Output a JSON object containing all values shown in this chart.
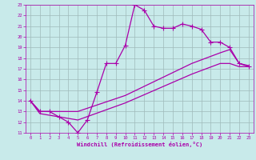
{
  "xlabel": "Windchill (Refroidissement éolien,°C)",
  "xlim": [
    -0.5,
    23.5
  ],
  "ylim": [
    11,
    23
  ],
  "yticks": [
    11,
    12,
    13,
    14,
    15,
    16,
    17,
    18,
    19,
    20,
    21,
    22,
    23
  ],
  "xticks": [
    0,
    1,
    2,
    3,
    4,
    5,
    6,
    7,
    8,
    9,
    10,
    11,
    12,
    13,
    14,
    15,
    16,
    17,
    18,
    19,
    20,
    21,
    22,
    23
  ],
  "bg_color": "#c8eaea",
  "grid_color": "#9fbaba",
  "line_color": "#aa00aa",
  "line1_x": [
    0,
    1,
    2,
    3,
    4,
    5,
    6,
    7,
    8,
    9,
    10,
    11,
    12,
    13,
    14,
    15,
    16,
    17,
    18,
    19,
    20,
    21,
    22,
    23
  ],
  "line1_y": [
    14.0,
    13.0,
    13.0,
    12.5,
    12.0,
    11.0,
    12.2,
    14.8,
    17.5,
    17.5,
    19.2,
    23.0,
    22.5,
    21.0,
    20.8,
    20.8,
    21.2,
    21.0,
    20.7,
    19.5,
    19.5,
    19.0,
    17.5,
    17.2
  ],
  "line2_x": [
    0,
    1,
    5,
    10,
    17,
    20,
    21,
    22,
    23
  ],
  "line2_y": [
    14.0,
    13.0,
    13.0,
    14.5,
    17.5,
    18.5,
    18.8,
    17.5,
    17.3
  ],
  "line3_x": [
    0,
    1,
    5,
    10,
    17,
    20,
    21,
    22,
    23
  ],
  "line3_y": [
    14.0,
    12.8,
    12.2,
    13.8,
    16.5,
    17.5,
    17.5,
    17.2,
    17.2
  ],
  "marker_style": "+",
  "marker_size": 4,
  "line_width": 0.9
}
